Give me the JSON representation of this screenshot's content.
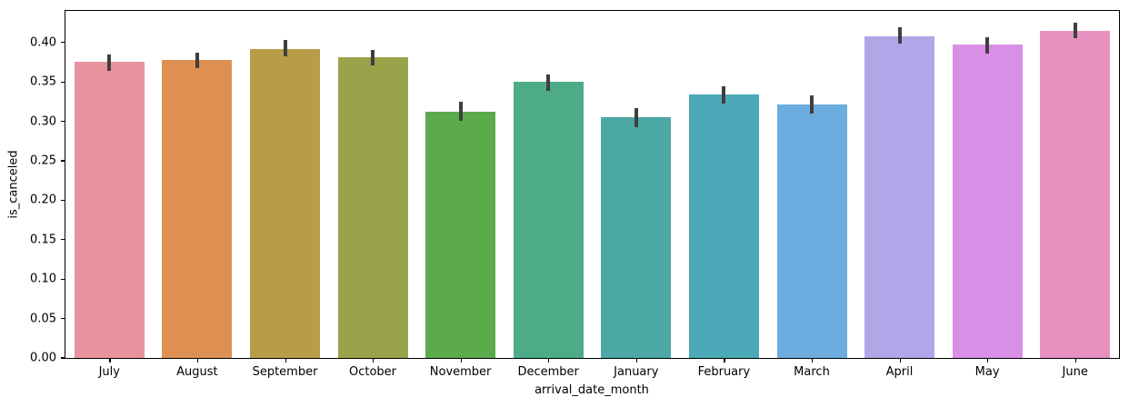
{
  "chart_data": {
    "type": "bar",
    "title": "",
    "xlabel": "arrival_date_month",
    "ylabel": "is_canceled",
    "categories": [
      "July",
      "August",
      "September",
      "October",
      "November",
      "December",
      "January",
      "February",
      "March",
      "April",
      "May",
      "June"
    ],
    "values": [
      0.375,
      0.378,
      0.392,
      0.381,
      0.312,
      0.35,
      0.305,
      0.334,
      0.321,
      0.408,
      0.397,
      0.415
    ],
    "error_bars": {
      "low": [
        0.364,
        0.368,
        0.382,
        0.371,
        0.3,
        0.339,
        0.293,
        0.322,
        0.31,
        0.398,
        0.386,
        0.405
      ],
      "high": [
        0.385,
        0.387,
        0.403,
        0.39,
        0.325,
        0.36,
        0.317,
        0.344,
        0.333,
        0.419,
        0.407,
        0.425
      ],
      "color": "#3f3f3f"
    },
    "bar_colors": [
      "#e8949e",
      "#dd9052",
      "#b89d49",
      "#99a34a",
      "#5bab4d",
      "#4dab88",
      "#4ba8a4",
      "#4ca9b8",
      "#6badde",
      "#b3a6e8",
      "#d98fe6",
      "#e791c0"
    ],
    "ylim": [
      0,
      0.44
    ],
    "ytick_labels": [
      "0.00",
      "0.05",
      "0.10",
      "0.15",
      "0.20",
      "0.25",
      "0.30",
      "0.35",
      "0.40"
    ],
    "grid": false,
    "legend": "none",
    "axis_color": "#000000",
    "plot_background": "#ffffff"
  }
}
